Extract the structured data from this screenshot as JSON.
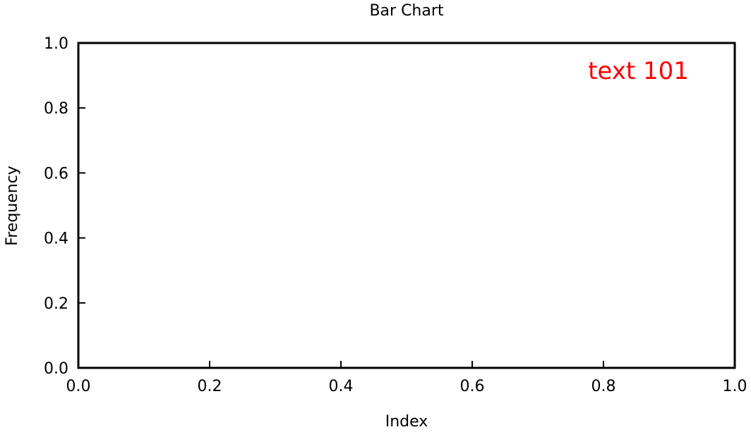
{
  "chart_data": {
    "type": "bar",
    "title": "Bar Chart",
    "xlabel": "Index",
    "ylabel": "Frequency",
    "xlim": [
      0.0,
      1.0
    ],
    "ylim": [
      0.0,
      1.0
    ],
    "x_ticks": [
      "0.0",
      "0.2",
      "0.4",
      "0.6",
      "0.8",
      "1.0"
    ],
    "y_ticks": [
      "0.0",
      "0.2",
      "0.4",
      "0.6",
      "0.8",
      "1.0"
    ],
    "categories": [],
    "values": [],
    "grid": false,
    "annotations": [
      {
        "text": "text 101",
        "x": 0.93,
        "y": 0.915,
        "color": "#ff0000"
      }
    ]
  }
}
